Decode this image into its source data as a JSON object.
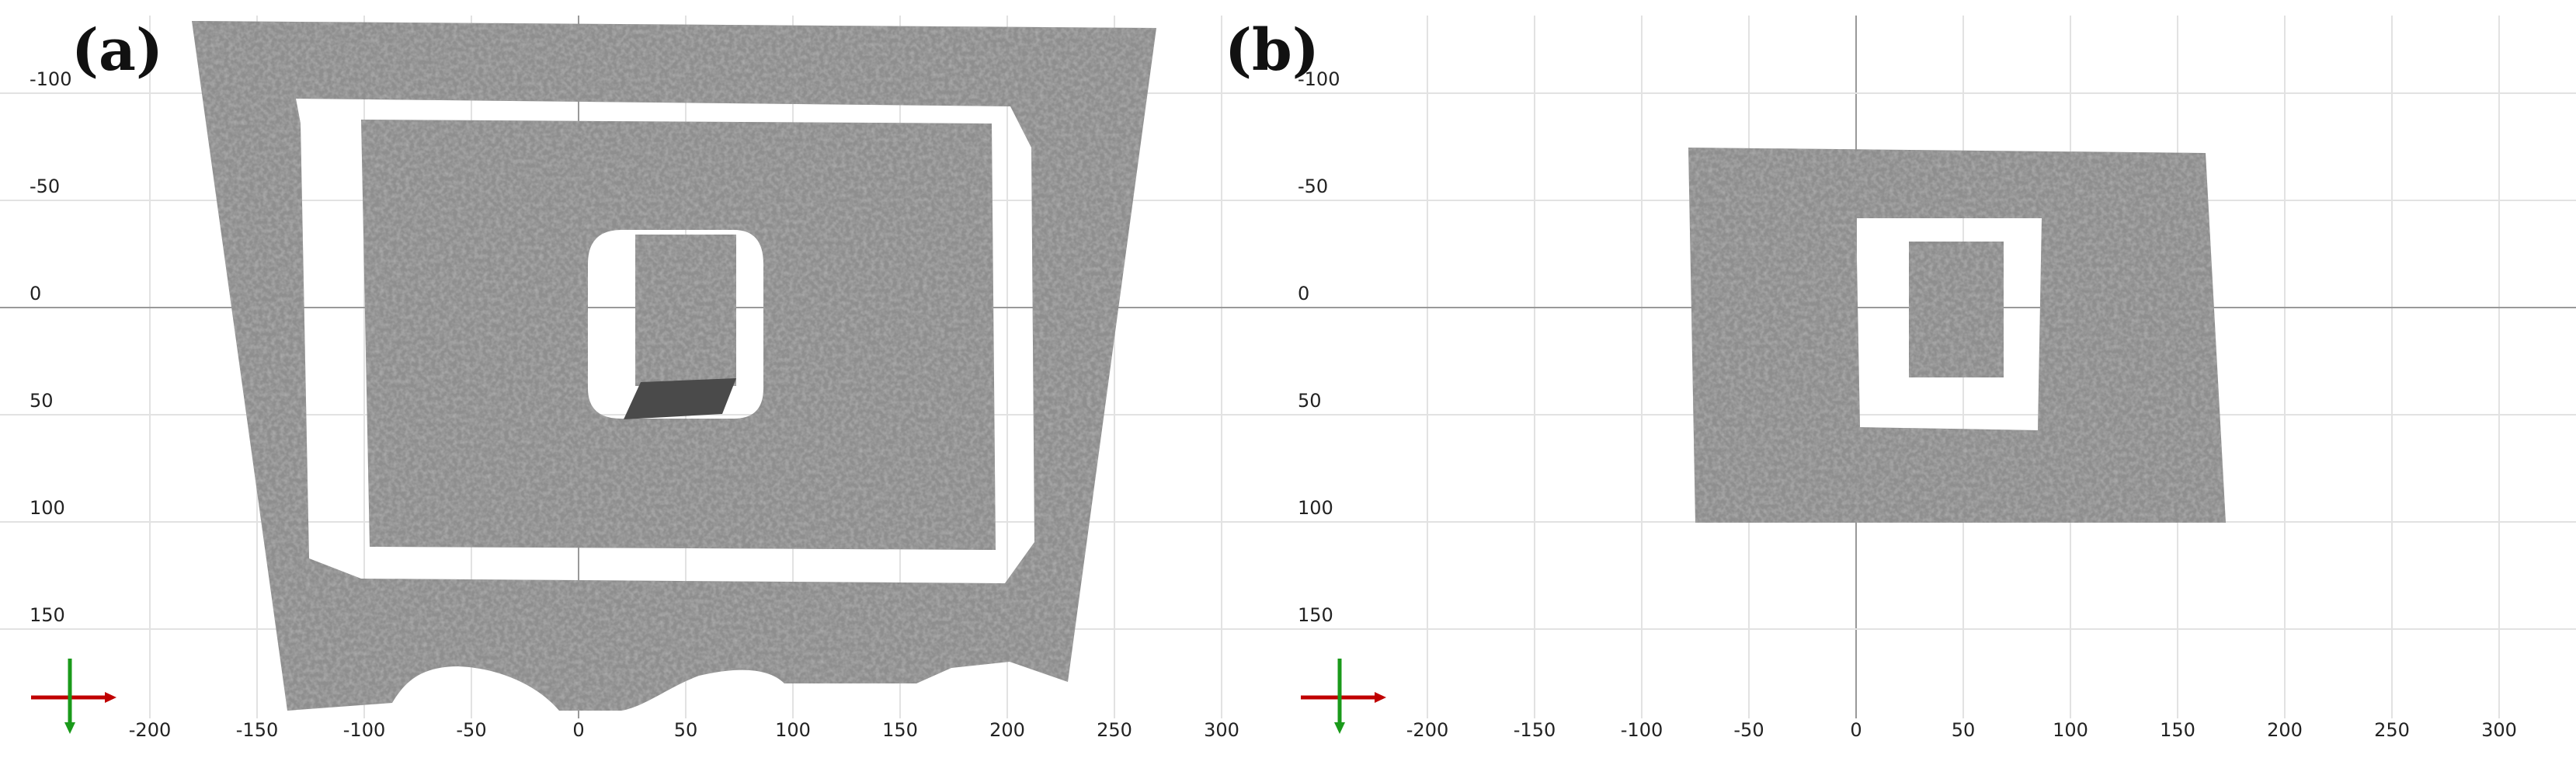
{
  "panels": [
    {
      "label": "(a)",
      "xticks": [
        -200,
        -150,
        -100,
        -50,
        0,
        50,
        100,
        150,
        200,
        250,
        300
      ],
      "yticks": [
        -100,
        -50,
        0,
        50,
        100,
        150
      ]
    },
    {
      "label": "(b)",
      "xticks": [
        -200,
        -150,
        -100,
        -50,
        0,
        50,
        100,
        150,
        200,
        250,
        300
      ],
      "yticks": [
        -100,
        -50,
        0,
        50,
        100,
        150
      ]
    }
  ]
}
